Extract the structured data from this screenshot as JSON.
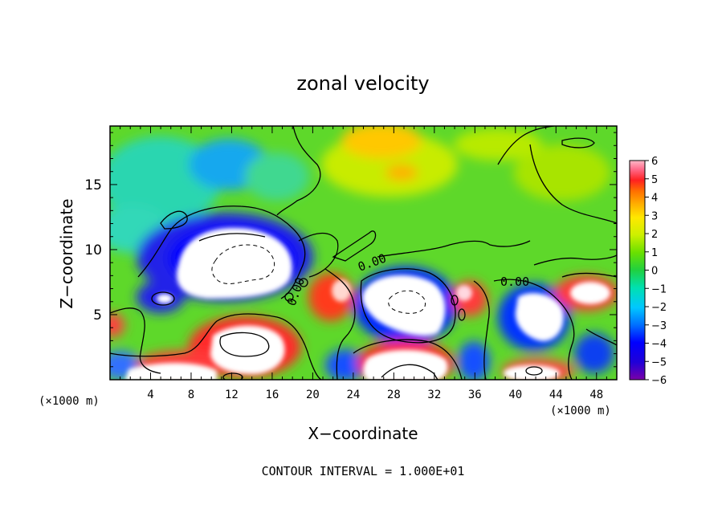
{
  "chart_data": {
    "type": "heatmap",
    "title": "zonal velocity",
    "xlabel": "X−coordinate",
    "ylabel": "Z−coordinate",
    "x_unit_left": "(×1000 m)",
    "x_unit_right": "(×1000 m)",
    "xlim": [
      0,
      50
    ],
    "ylim": [
      0,
      19.5
    ],
    "xticks": [
      "4",
      "8",
      "12",
      "16",
      "20",
      "24",
      "28",
      "32",
      "36",
      "40",
      "44",
      "48"
    ],
    "yticks": [
      "5",
      "10",
      "15"
    ],
    "colorbar": {
      "min": -6,
      "max": 6,
      "ticks": [
        "6",
        "5",
        "4",
        "3",
        "2",
        "1",
        "0",
        "−1",
        "−2",
        "−3",
        "−4",
        "−5",
        "−6"
      ],
      "colors": [
        "#7a00a8",
        "#3b00d0",
        "#0000ff",
        "#0060ff",
        "#00b4ff",
        "#00e6e6",
        "#00d9a0",
        "#00d050",
        "#30dc00",
        "#80e800",
        "#d4f000",
        "#ffff00",
        "#ffd000",
        "#ffa000",
        "#ff6600",
        "#ff2a2a",
        "#ff7a9a",
        "#ffb0c4"
      ]
    },
    "contour_labels": [
      "0.00",
      "0.00",
      "0.00"
    ],
    "footer": "CONTOUR INTERVAL = 1.000E+01",
    "colors": {
      "background_field": "#5ed82a",
      "saturated_white": "#ffffff",
      "contour_line": "#000000"
    }
  }
}
